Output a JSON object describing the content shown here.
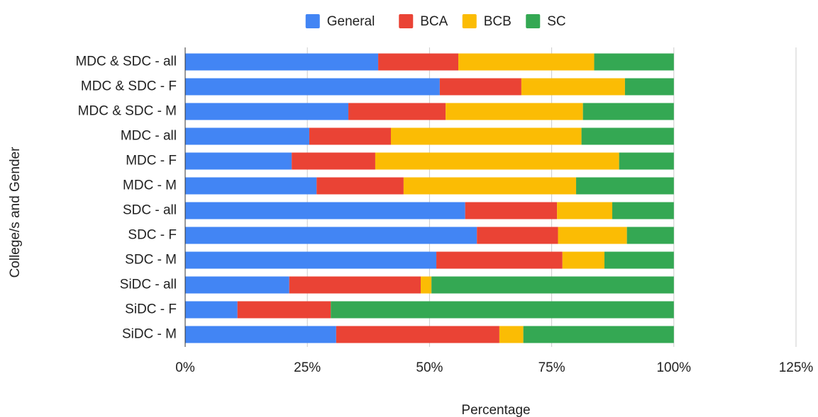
{
  "chart_data": {
    "type": "stacked_bar_horizontal",
    "x_label": "Percentage",
    "y_label": "College/s and Gender",
    "categories": [
      "MDC & SDC - all",
      "MDC & SDC - F",
      "MDC & SDC - M",
      "MDC - all",
      "MDC - F",
      "MDC - M",
      "SDC - all",
      "SDC - F",
      "SDC - M",
      "SiDC - all",
      "SiDC - F",
      "SiDC - M"
    ],
    "series": [
      {
        "name": "General",
        "color": "#4285f4",
        "values": [
          39.5,
          52.1,
          33.4,
          25.4,
          21.8,
          26.9,
          57.3,
          59.7,
          51.4,
          21.3,
          10.7,
          30.9
        ]
      },
      {
        "name": "BCA",
        "color": "#ea4335",
        "values": [
          16.4,
          16.7,
          19.9,
          16.7,
          17.1,
          17.8,
          18.8,
          16.6,
          25.8,
          26.9,
          19.1,
          33.4
        ]
      },
      {
        "name": "BCB",
        "color": "#fbbc04",
        "values": [
          27.8,
          21.2,
          28.1,
          39.0,
          49.9,
          35.3,
          11.3,
          14.1,
          8.6,
          2.2,
          0,
          4.9
        ]
      },
      {
        "name": "SC",
        "color": "#34a853",
        "values": [
          16.3,
          10.0,
          18.6,
          18.9,
          11.2,
          20.0,
          12.6,
          9.6,
          14.2,
          49.6,
          70.2,
          30.8
        ]
      }
    ],
    "xlim": [
      0,
      125
    ],
    "xticks": [
      {
        "value": 0,
        "label": "0%"
      },
      {
        "value": 25,
        "label": "25%"
      },
      {
        "value": 50,
        "label": "50%"
      },
      {
        "value": 75,
        "label": "75%"
      },
      {
        "value": 100,
        "label": "100%"
      },
      {
        "value": 125,
        "label": "125%"
      }
    ],
    "grid": true,
    "legend_position": "top"
  }
}
